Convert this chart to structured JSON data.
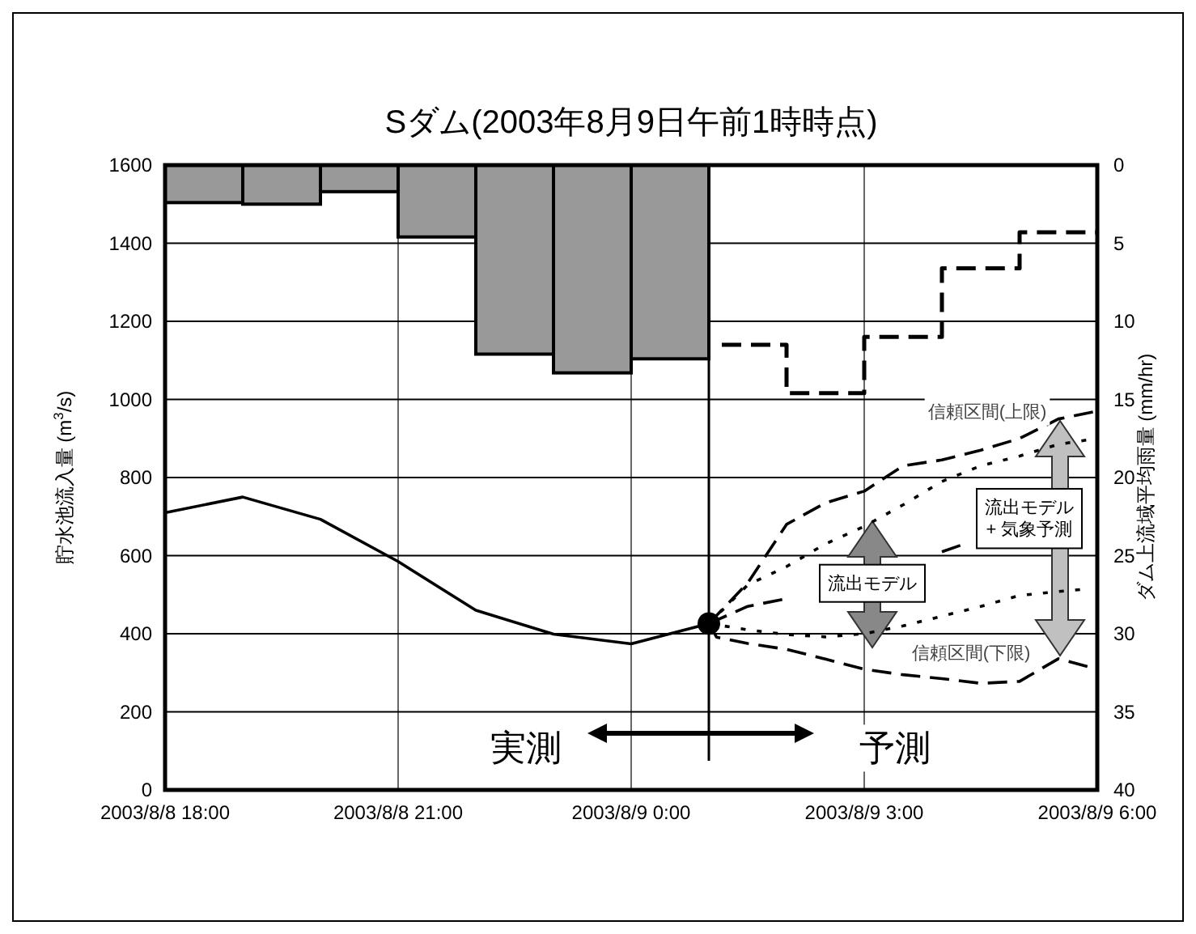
{
  "chart_data": {
    "type": "line",
    "title": "Sダム(2003年8月9日午前1時時点)",
    "ylabel": "貯水池流入量 (m$^{3}$/s)",
    "y2label": "ダム上流域平均雨量 (mm/hr)",
    "xlim": [
      "2003-08-08T18:00",
      "2003-08-09T06:00"
    ],
    "xticks": [
      {
        "value": "2003-08-08T18:00",
        "label": "2003/8/8 18:00"
      },
      {
        "value": "2003-08-08T21:00",
        "label": "2003/8/8 21:00"
      },
      {
        "value": "2003-08-09T00:00",
        "label": "2003/8/9 0:00"
      },
      {
        "value": "2003-08-09T03:00",
        "label": "2003/8/9 3:00"
      },
      {
        "value": "2003-08-09T06:00",
        "label": "2003/8/9 6:00"
      }
    ],
    "ylim": [
      0,
      1600
    ],
    "yticks": [
      0,
      200,
      400,
      600,
      800,
      1000,
      1200,
      1400,
      1600
    ],
    "y2lim": [
      40,
      0
    ],
    "y2ticks": [
      0,
      5,
      10,
      15,
      20,
      25,
      30,
      35,
      40
    ],
    "grid": true,
    "ref_lines": [
      {
        "axis": "x",
        "value": "2003-08-09T01:00",
        "color": "#000000"
      }
    ],
    "series": [
      {
        "type": "bar",
        "axis": "y2",
        "color": "#999999",
        "x": [
          "2003-08-08T18:30",
          "2003-08-08T19:30",
          "2003-08-08T20:30",
          "2003-08-08T21:30",
          "2003-08-08T22:30",
          "2003-08-08T23:30",
          "2003-08-09T00:30"
        ],
        "values": [
          2.4,
          2.5,
          1.7,
          4.6,
          12.1,
          13.3,
          12.4
        ]
      },
      {
        "type": "step",
        "axis": "y2",
        "color": "#000000",
        "line_style": "dashed",
        "x": [
          "2003-08-09T01:10",
          "2003-08-09T02:00",
          "2003-08-09T03:00",
          "2003-08-09T04:00",
          "2003-08-09T05:00",
          "2003-08-09T06:00"
        ],
        "values": [
          11.5,
          14.6,
          11.0,
          6.6,
          4.3,
          4.3
        ]
      },
      {
        "color": "#000000",
        "line_style": "solid",
        "x": [
          "2003-08-08T18:00",
          "2003-08-08T19:00",
          "2003-08-08T20:00",
          "2003-08-08T21:00",
          "2003-08-08T22:00",
          "2003-08-08T23:00",
          "2003-08-09T00:00",
          "2003-08-09T01:00"
        ],
        "values": [
          710,
          750,
          693,
          585,
          460,
          399,
          374,
          426
        ]
      },
      {
        "type": "scatter",
        "color": "#000000",
        "marker": "circle",
        "x": [
          "2003-08-09T01:00"
        ],
        "values": [
          426
        ]
      },
      {
        "color": "#000000",
        "line_style": "dashed",
        "x": [
          "2003-08-09T01:00",
          "2003-08-09T01:30",
          "2003-08-09T02:00",
          "2003-08-09T02:30",
          "2003-08-09T03:00",
          "2003-08-09T03:30",
          "2003-08-09T04:00",
          "2003-08-09T04:30",
          "2003-08-09T05:00",
          "2003-08-09T05:30",
          "2003-08-09T06:00"
        ],
        "values": [
          426,
          530,
          680,
          735,
          765,
          830,
          845,
          870,
          900,
          950,
          970
        ]
      },
      {
        "color": "#000000",
        "line_style": "dotted",
        "x": [
          "2003-08-09T01:00",
          "2003-08-09T01:30",
          "2003-08-09T02:00",
          "2003-08-09T02:30",
          "2003-08-09T03:00",
          "2003-08-09T03:30",
          "2003-08-09T04:00",
          "2003-08-09T04:30",
          "2003-08-09T05:00",
          "2003-08-09T05:30",
          "2003-08-09T06:00"
        ],
        "values": [
          426,
          525,
          572,
          630,
          675,
          730,
          790,
          830,
          855,
          885,
          900
        ]
      },
      {
        "color": "#000000",
        "line_style": "dashed",
        "x": [
          "2003-08-09T01:00",
          "2003-08-09T01:30",
          "2003-08-09T02:00",
          "2003-08-09T02:30",
          "2003-08-09T03:00",
          "2003-08-09T03:30",
          "2003-08-09T04:00",
          "2003-08-09T04:15"
        ],
        "values": [
          426,
          470,
          490,
          null,
          null,
          null,
          610,
          627
        ]
      },
      {
        "color": "#000000",
        "line_style": "dotted",
        "x": [
          "2003-08-09T01:00",
          "2003-08-09T01:30",
          "2003-08-09T02:00",
          "2003-08-09T02:30",
          "2003-08-09T03:00",
          "2003-08-09T03:30",
          "2003-08-09T04:00",
          "2003-08-09T04:30",
          "2003-08-09T05:00",
          "2003-08-09T05:30",
          "2003-08-09T05:50"
        ],
        "values": [
          426,
          410,
          398,
          392,
          400,
          420,
          445,
          470,
          498,
          508,
          514
        ]
      },
      {
        "color": "#000000",
        "line_style": "dashed",
        "x": [
          "2003-08-09T01:00",
          "2003-08-09T01:06",
          "2003-08-09T01:30",
          "2003-08-09T02:00",
          "2003-08-09T02:30",
          "2003-08-09T03:00",
          "2003-08-09T03:30",
          "2003-08-09T04:00",
          "2003-08-09T04:30",
          "2003-08-09T05:00",
          "2003-08-09T05:30",
          "2003-08-09T06:00"
        ],
        "values": [
          426,
          391,
          375,
          360,
          335,
          309,
          295,
          285,
          273,
          278,
          336,
          309
        ]
      }
    ],
    "annotations": [
      "信頼区間(上限)",
      "信頼区間(下限)",
      "流出モデル",
      "流出モデル\n+ 気象予測",
      "実測",
      "予測"
    ]
  }
}
